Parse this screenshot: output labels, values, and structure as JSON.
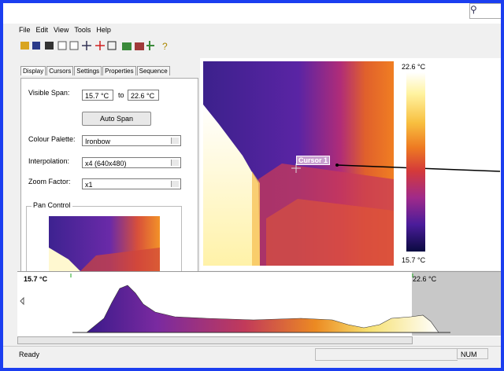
{
  "window": {
    "menu": [
      "File",
      "Edit",
      "View",
      "Tools",
      "Help"
    ],
    "tabs": [
      "Display",
      "Cursors",
      "Settings",
      "Properties",
      "Sequence"
    ],
    "display": {
      "visible_span_label": "Visible Span:",
      "span_min": "15.7 °C",
      "span_to": "to",
      "span_max": "22.6 °C",
      "auto_span": "Auto Span",
      "palette_label": "Colour Palette:",
      "palette": "Ironbow",
      "interpolation_label": "Interpolation:",
      "interpolation": "x4 (640x480)",
      "zoom_label": "Zoom Factor:",
      "zoom": "x1",
      "pan_control": "Pan Control"
    },
    "image": {
      "scale_max": "22.6 °C",
      "scale_min": "15.7 °C",
      "cursor": "Cursor 1"
    },
    "histogram": {
      "min": "15.7 °C",
      "max": "22.6 °C"
    },
    "status": {
      "text": "Ready",
      "num": "NUM"
    }
  }
}
